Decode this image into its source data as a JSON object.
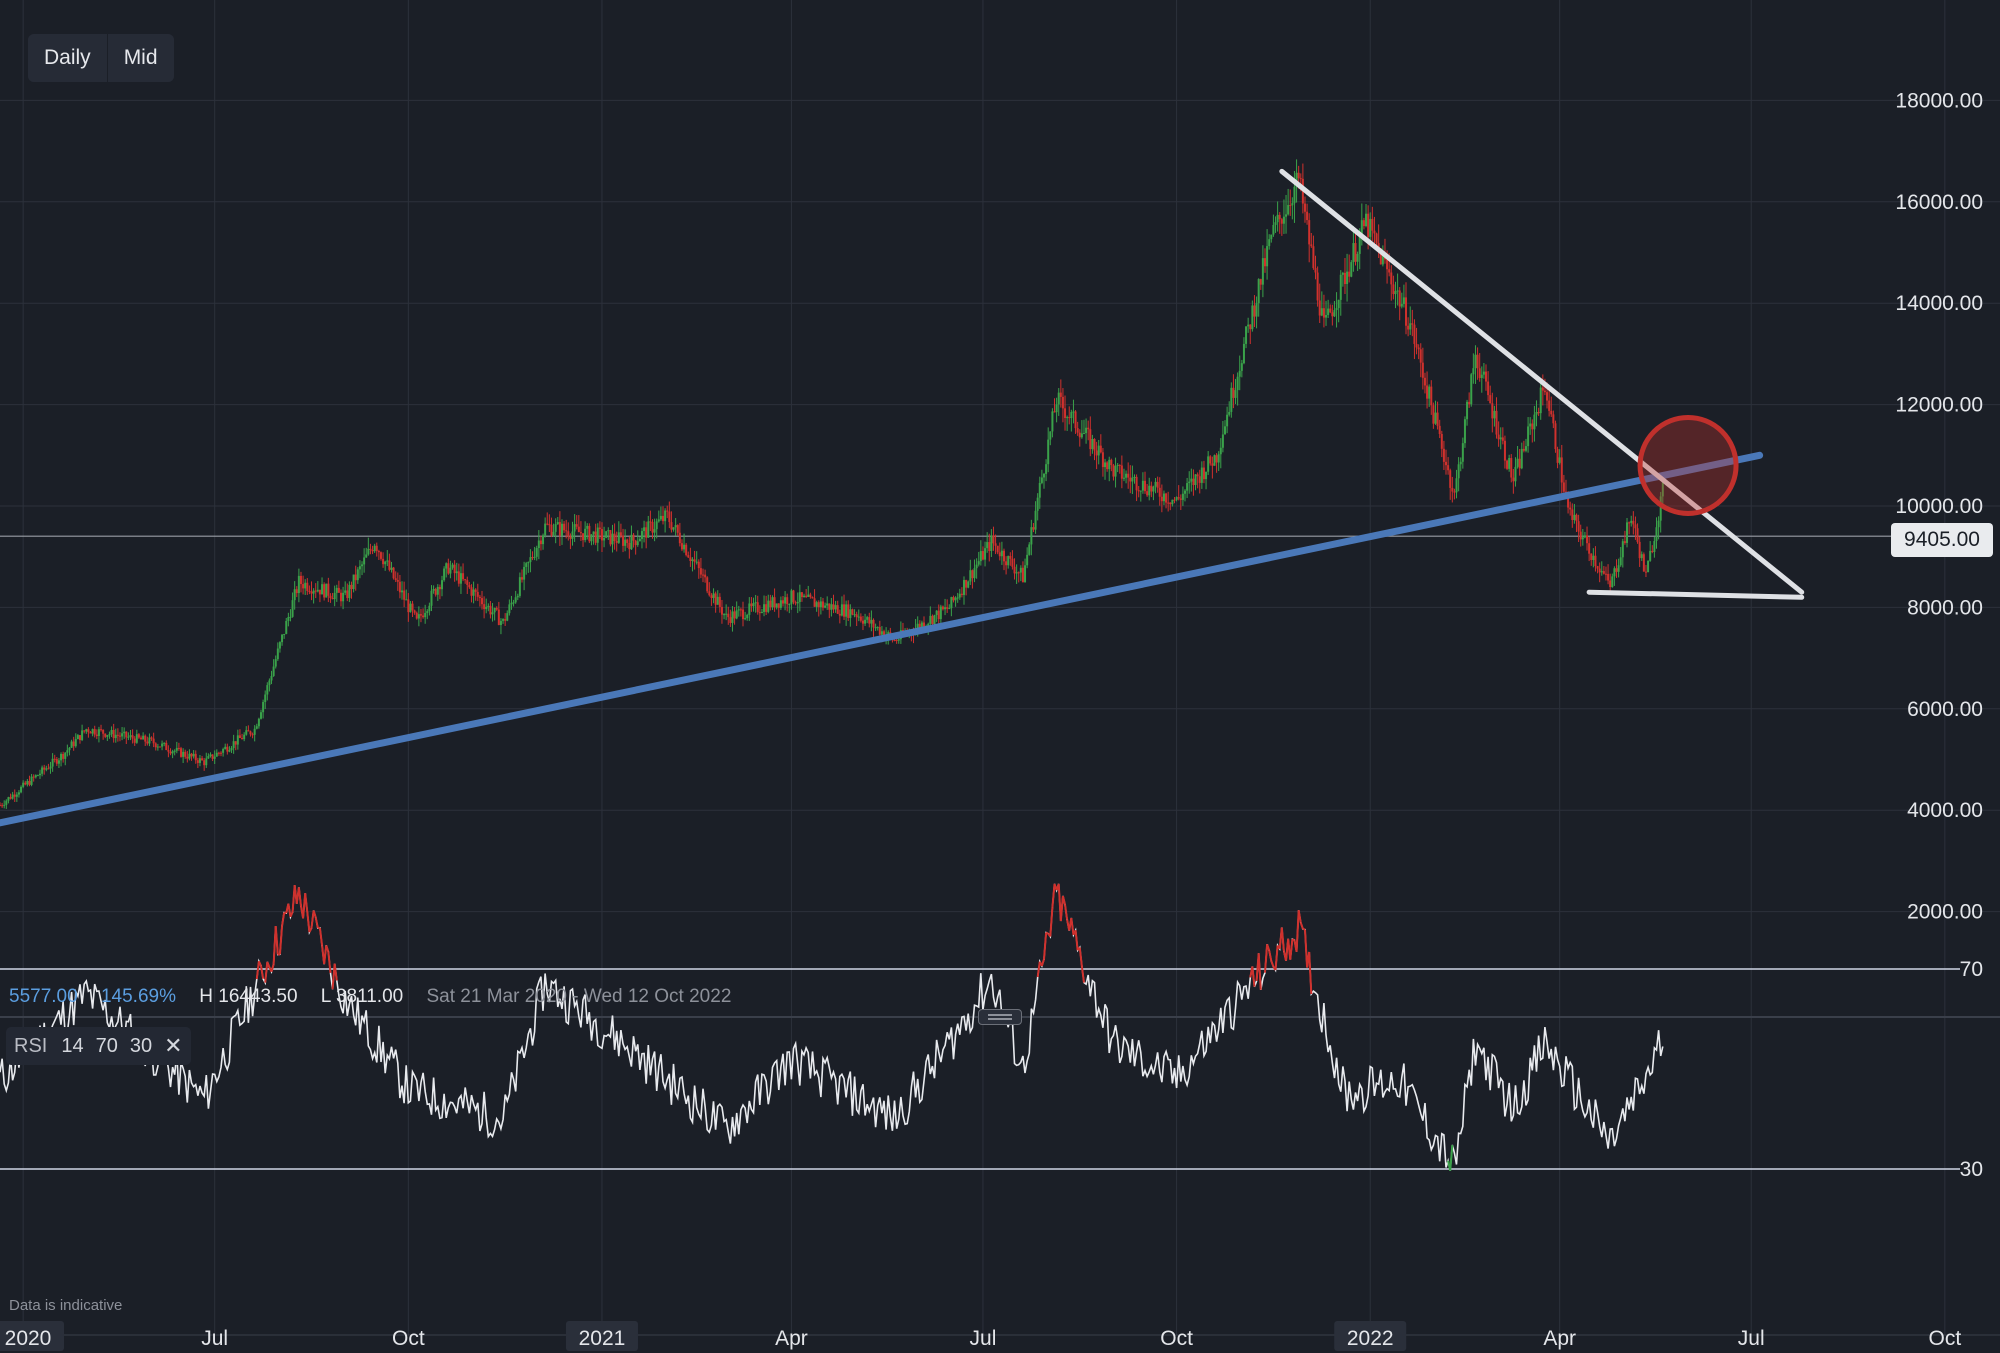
{
  "toolbar": {
    "interval_label": "Daily",
    "price_type_label": "Mid"
  },
  "stats": {
    "value": "5577.00",
    "percent": "145.69%",
    "high": "H 16443.50",
    "low": "L 3811.00",
    "range": "Sat 21 Mar 2020 - Wed 12 Oct 2022"
  },
  "rsi": {
    "name": "RSI",
    "period": "14",
    "upper": "70",
    "lower": "30"
  },
  "disclaimer": "Data is indicative",
  "chart_data": {
    "type": "candlestick",
    "x_range": [
      "2020-03-21",
      "2022-10-12"
    ],
    "x_tick_labels": [
      "2020",
      "Jul",
      "Oct",
      "2021",
      "Apr",
      "Jul",
      "Oct",
      "2022",
      "Apr",
      "Jul",
      "Oct"
    ],
    "y_range": [
      0,
      19000
    ],
    "y_ticks": [
      2000,
      4000,
      6000,
      8000,
      10000,
      12000,
      14000,
      16000,
      18000
    ],
    "y_tick_labels": [
      "2000.00",
      "4000.00",
      "6000.00",
      "8000.00",
      "10000.00",
      "12000.00",
      "14000.00",
      "16000.00",
      "18000.00"
    ],
    "current_price": 9405,
    "current_price_label": "9405.00",
    "high": 16443.5,
    "low": 3811,
    "colors": {
      "up": "#3aa24a",
      "down": "#d0312d",
      "trendline": "#4a78b8",
      "triangle": "#dfe1e5",
      "highlight": "#c0302c",
      "rsi": "#e8eaee"
    },
    "close_path": [
      [
        "2020-03-21",
        4100
      ],
      [
        "2020-04-20",
        5100
      ],
      [
        "2020-05-01",
        5600
      ],
      [
        "2020-06-01",
        5350
      ],
      [
        "2020-06-26",
        4950
      ],
      [
        "2020-07-20",
        5600
      ],
      [
        "2020-08-10",
        8500
      ],
      [
        "2020-09-01",
        8200
      ],
      [
        "2020-09-15",
        9300
      ],
      [
        "2020-10-05",
        7700
      ],
      [
        "2020-10-20",
        8800
      ],
      [
        "2020-11-15",
        7700
      ],
      [
        "2020-12-05",
        9600
      ],
      [
        "2021-01-15",
        9300
      ],
      [
        "2021-02-01",
        9800
      ],
      [
        "2021-02-15",
        8800
      ],
      [
        "2021-03-01",
        7800
      ],
      [
        "2021-04-01",
        8200
      ],
      [
        "2021-05-01",
        7900
      ],
      [
        "2021-05-20",
        7350
      ],
      [
        "2021-06-15",
        8000
      ],
      [
        "2021-07-05",
        9300
      ],
      [
        "2021-07-20",
        8600
      ],
      [
        "2021-08-05",
        12100
      ],
      [
        "2021-09-01",
        10700
      ],
      [
        "2021-10-01",
        10100
      ],
      [
        "2021-10-20",
        11000
      ],
      [
        "2021-11-15",
        15300
      ],
      [
        "2021-11-28",
        16443.5
      ],
      [
        "2021-12-10",
        13500
      ],
      [
        "2021-12-30",
        15600
      ],
      [
        "2022-01-20",
        13600
      ],
      [
        "2022-02-10",
        10200
      ],
      [
        "2022-02-20",
        13000
      ],
      [
        "2022-03-10",
        10500
      ],
      [
        "2022-03-25",
        12400
      ],
      [
        "2022-04-05",
        9900
      ],
      [
        "2022-04-25",
        8400
      ],
      [
        "2022-05-05",
        9800
      ],
      [
        "2022-05-12",
        8600
      ],
      [
        "2022-05-20",
        10300
      ]
    ],
    "trendlines": [
      {
        "name": "support",
        "from": [
          "2020-03-21",
          3750
        ],
        "to": [
          "2022-07-05",
          11000
        ]
      },
      {
        "name": "descending-resistance",
        "from": [
          "2021-11-20",
          16600
        ],
        "to": [
          "2022-07-25",
          8300
        ]
      },
      {
        "name": "horizontal-support",
        "from": [
          "2022-04-15",
          8300
        ],
        "to": [
          "2022-07-25",
          8200
        ]
      }
    ],
    "highlight_circle": {
      "date": "2022-06-01",
      "value": 10800
    },
    "rsi": {
      "levels": [
        70,
        30
      ],
      "y_range": [
        0,
        100
      ],
      "path": [
        [
          "2020-03-21",
          48
        ],
        [
          "2020-05-01",
          65
        ],
        [
          "2020-06-26",
          44
        ],
        [
          "2020-08-10",
          85
        ],
        [
          "2020-09-01",
          64
        ],
        [
          "2020-10-01",
          46
        ],
        [
          "2020-11-15",
          40
        ],
        [
          "2020-12-05",
          67
        ],
        [
          "2021-01-15",
          54
        ],
        [
          "2021-03-01",
          38
        ],
        [
          "2021-04-01",
          52
        ],
        [
          "2021-05-20",
          40
        ],
        [
          "2021-06-15",
          55
        ],
        [
          "2021-07-05",
          68
        ],
        [
          "2021-07-20",
          50
        ],
        [
          "2021-08-05",
          85
        ],
        [
          "2021-09-01",
          55
        ],
        [
          "2021-10-01",
          48
        ],
        [
          "2021-11-15",
          72
        ],
        [
          "2021-11-28",
          78
        ],
        [
          "2021-12-20",
          45
        ],
        [
          "2022-01-15",
          48
        ],
        [
          "2022-02-10",
          30
        ],
        [
          "2022-02-20",
          55
        ],
        [
          "2022-03-10",
          42
        ],
        [
          "2022-03-25",
          55
        ],
        [
          "2022-04-25",
          35
        ],
        [
          "2022-05-12",
          48
        ],
        [
          "2022-05-20",
          56
        ]
      ]
    }
  }
}
